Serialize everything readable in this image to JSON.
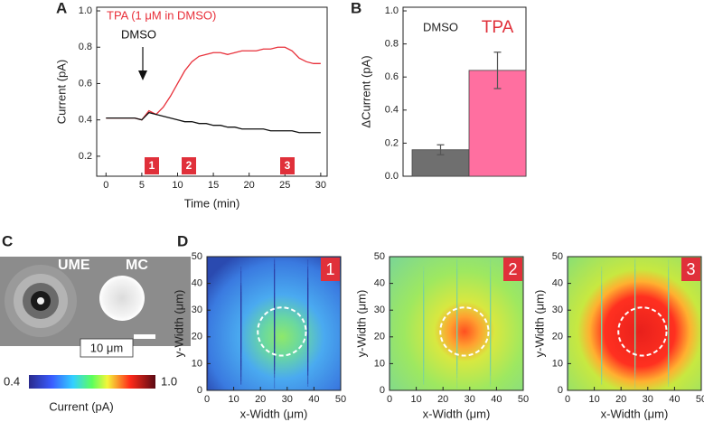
{
  "panel_labels": [
    "A",
    "B",
    "C",
    "D"
  ],
  "panel_c": {
    "ume": "UME",
    "mc": "MC",
    "scale": "10 μm",
    "colorbar_min": "0.4",
    "colorbar_max": "1.0",
    "colorbar_label": "Current (pA)"
  },
  "chart_data": [
    {
      "type": "line",
      "xlabel": "Time (min)",
      "ylabel": "Current (pA)",
      "x": [
        0,
        1,
        2,
        3,
        4,
        5,
        6,
        7,
        8,
        9,
        10,
        11,
        12,
        13,
        14,
        15,
        16,
        17,
        18,
        19,
        20,
        21,
        22,
        23,
        24,
        25,
        26,
        27,
        28,
        29,
        30
      ],
      "series": [
        {
          "name": "TPA (1 μM in DMSO)",
          "color": "#e8303a",
          "values": [
            0.41,
            0.41,
            0.41,
            0.41,
            0.41,
            0.4,
            0.45,
            0.43,
            0.47,
            0.53,
            0.6,
            0.67,
            0.72,
            0.75,
            0.76,
            0.77,
            0.77,
            0.76,
            0.77,
            0.78,
            0.78,
            0.78,
            0.79,
            0.79,
            0.8,
            0.8,
            0.78,
            0.74,
            0.72,
            0.71,
            0.71
          ]
        },
        {
          "name": "DMSO",
          "color": "#111111",
          "values": [
            0.41,
            0.41,
            0.41,
            0.41,
            0.41,
            0.4,
            0.44,
            0.43,
            0.42,
            0.41,
            0.4,
            0.39,
            0.39,
            0.38,
            0.38,
            0.37,
            0.37,
            0.36,
            0.36,
            0.35,
            0.35,
            0.35,
            0.35,
            0.34,
            0.34,
            0.34,
            0.34,
            0.33,
            0.33,
            0.33,
            0.33
          ]
        }
      ],
      "markers": [
        "1",
        "2",
        "3"
      ],
      "xlim": [
        -1.3,
        30.9
      ],
      "xticks": [
        0,
        5,
        10,
        15,
        20,
        25,
        30
      ],
      "ylim": [
        0.09,
        1.02
      ],
      "yticks": [
        0.2,
        0.4,
        0.6,
        0.8,
        {
          "value": 1.0,
          "label": "1.0"
        }
      ]
    },
    {
      "type": "bar",
      "ylabel": "ΔCurrent (pA)",
      "categories": [
        "DMSO",
        "TPA"
      ],
      "values": [
        0.16,
        0.64
      ],
      "errors": [
        0.03,
        0.11
      ],
      "colors": [
        "#6f6f6f",
        "#ff6fa0"
      ],
      "ylim": [
        0,
        1.022
      ],
      "yticks": [
        {
          "value": 0,
          "label": "0.0"
        },
        0.2,
        0.4,
        0.6,
        0.8,
        {
          "value": 1.0,
          "label": "1.0"
        }
      ]
    },
    {
      "type": "heatmap",
      "label": "1",
      "xlabel": "x-Width (μm)",
      "ylabel": "y-Width (μm)",
      "xlim": [
        0,
        50
      ],
      "ylim": [
        0,
        50
      ],
      "xticks": [
        0,
        10,
        20,
        30,
        40,
        50
      ],
      "yticks": [
        0,
        10,
        20,
        30,
        40,
        50
      ]
    },
    {
      "type": "heatmap",
      "label": "2",
      "xlabel": "x-Width (μm)",
      "ylabel": "y-Width (μm)",
      "xlim": [
        0,
        50
      ],
      "ylim": [
        0,
        50
      ],
      "xticks": [
        0,
        10,
        20,
        30,
        40,
        50
      ],
      "yticks": [
        0,
        10,
        20,
        30,
        40,
        50
      ]
    },
    {
      "type": "heatmap",
      "label": "3",
      "xlabel": "x-Width (μm)",
      "ylabel": "y-Width (μm)",
      "xlim": [
        0,
        50
      ],
      "ylim": [
        0,
        50
      ],
      "xticks": [
        0,
        10,
        20,
        30,
        40,
        50
      ],
      "yticks": [
        0,
        10,
        20,
        30,
        40,
        50
      ]
    }
  ]
}
